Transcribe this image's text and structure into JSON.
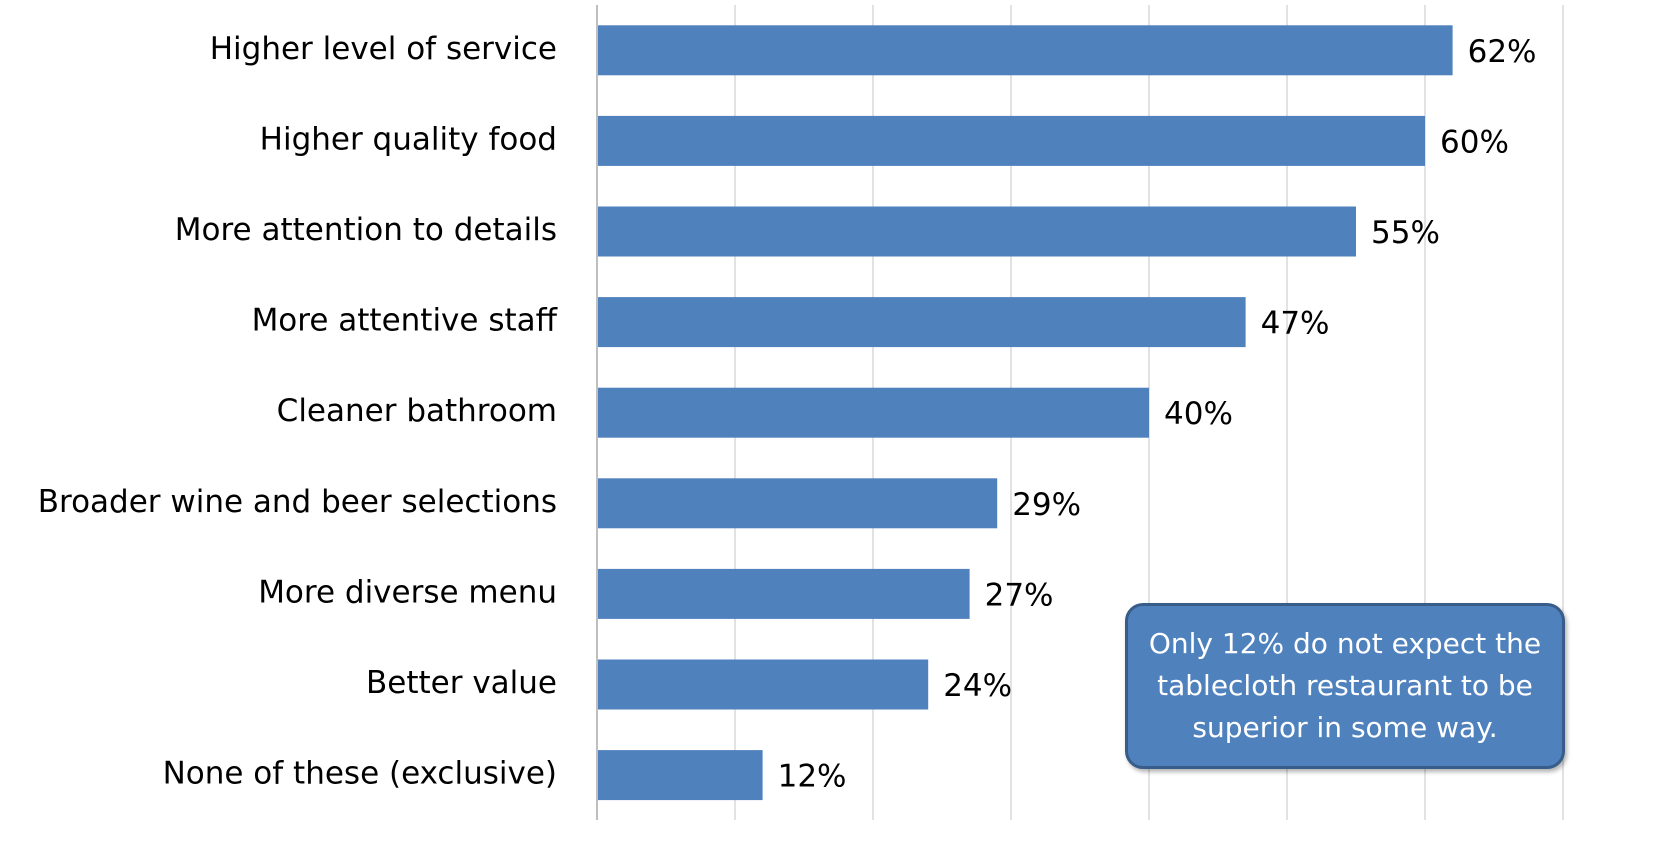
{
  "chart_data": {
    "type": "barh",
    "categories": [
      "Higher level of service",
      "Higher quality food",
      "More attention to details",
      "More attentive staff",
      "Cleaner bathroom",
      "Broader wine and beer selections",
      "More diverse menu",
      "Better value",
      "None of these (exclusive)"
    ],
    "values": [
      62,
      60,
      55,
      47,
      40,
      29,
      27,
      24,
      12
    ],
    "value_labels": [
      "62%",
      "60%",
      "55%",
      "47%",
      "40%",
      "29%",
      "27%",
      "24%",
      "12%"
    ],
    "color": "#4f81bd",
    "xlim": [
      0,
      70
    ],
    "xticks": [
      0,
      10,
      20,
      30,
      40,
      50,
      60,
      70
    ],
    "grid": true,
    "annotation": "Only 12% do not expect the tablecloth restaurant to be superior in some way."
  }
}
